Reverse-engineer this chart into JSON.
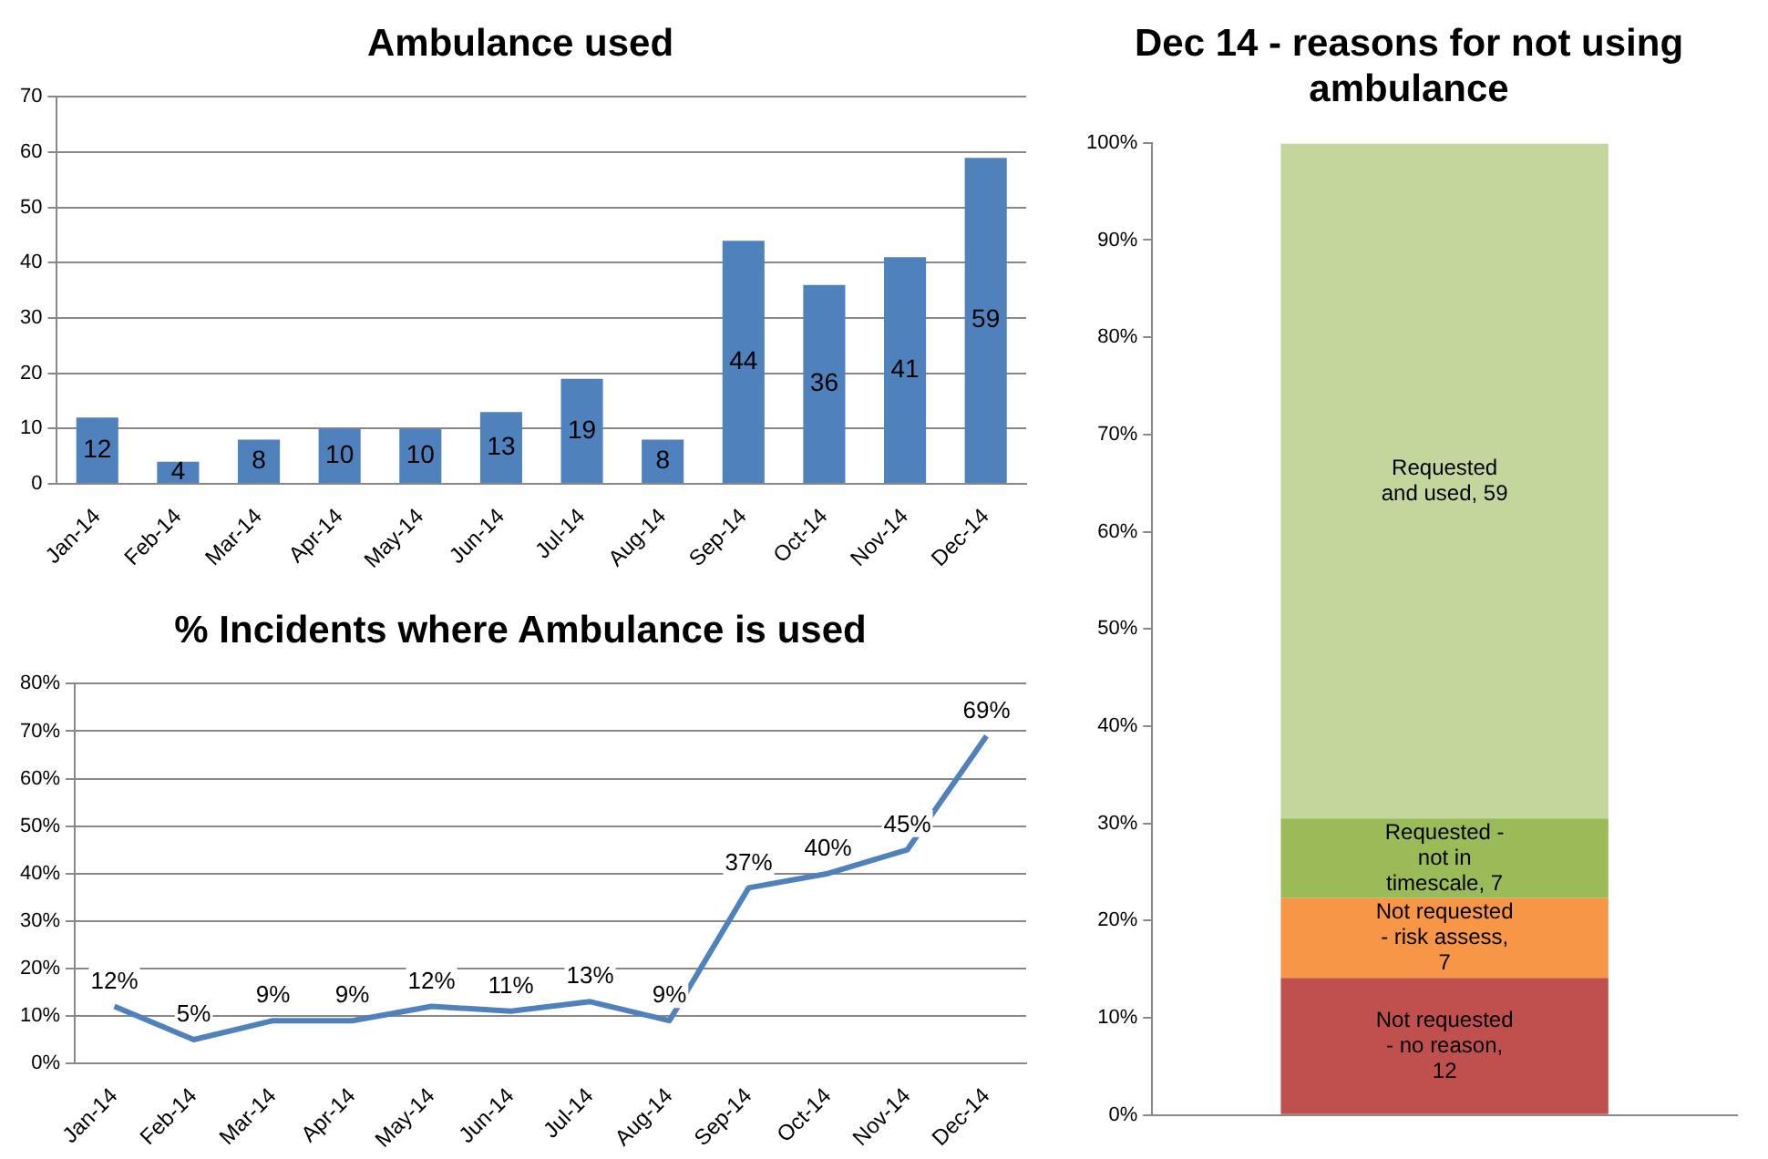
{
  "chart_data": [
    {
      "type": "bar",
      "title": "Ambulance used",
      "categories": [
        "Jan-14",
        "Feb-14",
        "Mar-14",
        "Apr-14",
        "May-14",
        "Jun-14",
        "Jul-14",
        "Aug-14",
        "Sep-14",
        "Oct-14",
        "Nov-14",
        "Dec-14"
      ],
      "values": [
        12,
        4,
        8,
        10,
        10,
        13,
        19,
        8,
        44,
        36,
        41,
        59
      ],
      "color": "#4f81bd",
      "ylim": [
        0,
        70
      ],
      "yticks": [
        0,
        10,
        20,
        30,
        40,
        50,
        60,
        70
      ],
      "grid": "y",
      "data_labels": true
    },
    {
      "type": "line",
      "title": "% Incidents where Ambulance is used",
      "categories": [
        "Jan-14",
        "Feb-14",
        "Mar-14",
        "Apr-14",
        "May-14",
        "Jun-14",
        "Jul-14",
        "Aug-14",
        "Sep-14",
        "Oct-14",
        "Nov-14",
        "Dec-14"
      ],
      "values": [
        12,
        5,
        9,
        9,
        12,
        11,
        13,
        9,
        37,
        40,
        45,
        69
      ],
      "value_labels": [
        "12%",
        "5%",
        "9%",
        "9%",
        "12%",
        "11%",
        "13%",
        "9%",
        "37%",
        "40%",
        "45%",
        "69%"
      ],
      "color": "#4f81bd",
      "ylim": [
        0,
        80
      ],
      "yticks": [
        {
          "value": 0,
          "label": "0%"
        },
        {
          "value": 10,
          "label": "10%"
        },
        {
          "value": 20,
          "label": "20%"
        },
        {
          "value": 30,
          "label": "30%"
        },
        {
          "value": 40,
          "label": "40%"
        },
        {
          "value": 50,
          "label": "50%"
        },
        {
          "value": 60,
          "label": "60%"
        },
        {
          "value": 70,
          "label": "70%"
        },
        {
          "value": 80,
          "label": "80%"
        }
      ],
      "grid": "y",
      "marker": "none"
    },
    {
      "type": "bar",
      "title": "Dec 14 - reasons for not using ambulance",
      "categories": [
        null
      ],
      "stacked": true,
      "series": [
        {
          "color": "#c0504d",
          "values": [
            14.1
          ]
        },
        {
          "color": "#f79646",
          "values": [
            8.2
          ]
        },
        {
          "color": "#9bbb59",
          "values": [
            8.2
          ]
        },
        {
          "color": "#c3d69b",
          "values": [
            69.4
          ]
        }
      ],
      "annotations": [
        "Not requested - no reason, 12",
        "Not requested - risk assess, 7",
        "Requested - not in timescale, 7",
        "Requested and used, 59"
      ],
      "ylim": [
        0,
        100
      ],
      "yticks": [
        {
          "value": 0,
          "label": "0%"
        },
        {
          "value": 10,
          "label": "10%"
        },
        {
          "value": 20,
          "label": "20%"
        },
        {
          "value": 30,
          "label": "30%"
        },
        {
          "value": 40,
          "label": "40%"
        },
        {
          "value": 50,
          "label": "50%"
        },
        {
          "value": 60,
          "label": "60%"
        },
        {
          "value": 70,
          "label": "70%"
        },
        {
          "value": 80,
          "label": "80%"
        },
        {
          "value": 90,
          "label": "90%"
        },
        {
          "value": 100,
          "label": "100%"
        }
      ],
      "grid": false
    }
  ]
}
